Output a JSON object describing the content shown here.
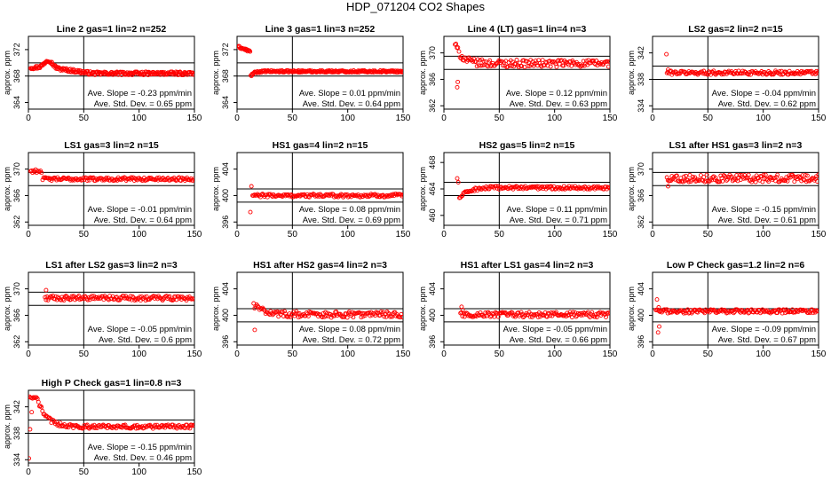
{
  "page": {
    "title": "HDP_071204  CO2 Shapes"
  },
  "style": {
    "point_color": "#ff0000",
    "line_color": "#000000"
  },
  "chart_data": [
    {
      "type": "scatter",
      "title": "Line 2 gas=1 lin=2 n=252",
      "ylabel": "approx. ppm",
      "xlim": [
        0,
        150
      ],
      "ylim": [
        363,
        374
      ],
      "xticks": [
        0,
        50,
        100,
        150
      ],
      "yticks": [
        364,
        368,
        372
      ],
      "hlines": [
        368,
        370
      ],
      "vline": 50,
      "slope_text": "Ave. Slope = -0.23  ppm/min",
      "sd_text": "Ave. Std. Dev. = 0.65  ppm",
      "x_start": 2,
      "x_end": 150,
      "step": 0.6,
      "start_spike": true,
      "base": 369.3,
      "noise": 0.25,
      "shape": "hump",
      "shape_params": {
        "peak_x": 18,
        "amp": 1.1,
        "width": 5,
        "drift": -0.9
      }
    },
    {
      "type": "scatter",
      "title": "Line 3 gas=1 lin=3 n=252",
      "ylabel": "approx. ppm",
      "xlim": [
        0,
        150
      ],
      "ylim": [
        363,
        374
      ],
      "xticks": [
        0,
        50,
        100,
        150
      ],
      "yticks": [
        364,
        368,
        372
      ],
      "hlines": [
        368,
        370
      ],
      "vline": 50,
      "slope_text": "Ave. Slope = 0.01  ppm/min",
      "sd_text": "Ave. Std. Dev. = 0.64  ppm",
      "x_start": 1,
      "x_end": 150,
      "step": 0.6,
      "start_spike": false,
      "base": 368.7,
      "noise": 0.15,
      "shape": "startdrop",
      "shape_params": {
        "start_val": 372.5,
        "drop_x": 12,
        "dip": -0.8
      }
    },
    {
      "type": "scatter",
      "title": "Line 4 (LT) gas=1 lin=4 n=3",
      "ylabel": "approx. ppm",
      "xlim": [
        0,
        150
      ],
      "ylim": [
        361.5,
        372.5
      ],
      "xticks": [
        0,
        50,
        100,
        150
      ],
      "yticks": [
        362,
        366,
        370
      ],
      "hlines": [
        367.5,
        369.5
      ],
      "vline": 50,
      "slope_text": "Ave. Slope = 0.12  ppm/min",
      "sd_text": "Ave. Std. Dev. = 0.63  ppm",
      "x_start": 10,
      "x_end": 150,
      "step": 0.9,
      "start_spike": false,
      "base": 368.4,
      "noise": 0.55,
      "shape": "decay",
      "shape_params": {
        "amp": 3.0,
        "tau": 6,
        "outliers": [
          [
            12,
            364.8
          ],
          [
            12.5,
            365.6
          ]
        ]
      }
    },
    {
      "type": "scatter",
      "title": "LS2 gas=2 lin=2 n=15",
      "ylabel": "approx. ppm",
      "xlim": [
        0,
        150
      ],
      "ylim": [
        333.5,
        344.5
      ],
      "xticks": [
        0,
        50,
        100,
        150
      ],
      "yticks": [
        334,
        338,
        342
      ],
      "hlines": [
        338,
        340
      ],
      "vline": 50,
      "slope_text": "Ave. Slope = -0.04  ppm/min",
      "sd_text": "Ave. Std. Dev. = 0.62  ppm",
      "x_start": 13,
      "x_end": 150,
      "step": 0.9,
      "start_spike": false,
      "base": 339.0,
      "noise": 0.3,
      "shape": "flat",
      "shape_params": {
        "outliers": [
          [
            12.5,
            341.8
          ],
          [
            14,
            339.5
          ]
        ]
      }
    },
    {
      "type": "scatter",
      "title": "LS1 gas=3 lin=2 n=15",
      "ylabel": "approx. ppm",
      "xlim": [
        0,
        150
      ],
      "ylim": [
        361.5,
        372.5
      ],
      "xticks": [
        0,
        50,
        100,
        150
      ],
      "yticks": [
        362,
        366,
        370
      ],
      "hlines": [
        367.5,
        369.5
      ],
      "vline": 50,
      "slope_text": "Ave. Slope = -0.01  ppm/min",
      "sd_text": "Ave. Std. Dev. = 0.64  ppm",
      "x_start": 2,
      "x_end": 150,
      "step": 0.9,
      "start_spike": false,
      "base": 368.5,
      "noise": 0.25,
      "shape": "startplateau",
      "shape_params": {
        "start_val": 369.7,
        "end_x": 12
      }
    },
    {
      "type": "scatter",
      "title": "HS1 gas=4 lin=2 n=15",
      "ylabel": "approx. ppm",
      "xlim": [
        0,
        150
      ],
      "ylim": [
        395.5,
        406.5
      ],
      "xticks": [
        0,
        50,
        100,
        150
      ],
      "yticks": [
        396,
        400,
        404
      ],
      "hlines": [
        399,
        401
      ],
      "vline": 50,
      "slope_text": "Ave. Slope = 0.08  ppm/min",
      "sd_text": "Ave. Std. Dev. = 0.69  ppm",
      "x_start": 14,
      "x_end": 150,
      "step": 0.9,
      "start_spike": false,
      "base": 400.0,
      "noise": 0.25,
      "shape": "flat",
      "shape_params": {
        "outliers": [
          [
            12,
            397.5
          ],
          [
            13,
            401.4
          ]
        ]
      }
    },
    {
      "type": "scatter",
      "title": "HS2 gas=5 lin=2 n=15",
      "ylabel": "approx. ppm",
      "xlim": [
        0,
        150
      ],
      "ylim": [
        458.5,
        469.5
      ],
      "xticks": [
        0,
        50,
        100,
        150
      ],
      "yticks": [
        460,
        464,
        468
      ],
      "hlines": [
        463,
        465
      ],
      "vline": 50,
      "slope_text": "Ave. Slope = 0.11  ppm/min",
      "sd_text": "Ave. Std. Dev. = 0.71  ppm",
      "x_start": 14,
      "x_end": 150,
      "step": 0.9,
      "start_spike": false,
      "base": 464.2,
      "noise": 0.25,
      "shape": "rise",
      "shape_params": {
        "start_val": 462.6,
        "tau": 8,
        "outliers": [
          [
            12,
            465.6
          ],
          [
            13,
            465.0
          ]
        ]
      }
    },
    {
      "type": "scatter",
      "title": "LS1 after HS1 gas=3 lin=2 n=3",
      "ylabel": "approx. ppm",
      "xlim": [
        0,
        150
      ],
      "ylim": [
        361.5,
        372.5
      ],
      "xticks": [
        0,
        50,
        100,
        150
      ],
      "yticks": [
        362,
        366,
        370
      ],
      "hlines": [
        367.5,
        369.5
      ],
      "vline": 50,
      "slope_text": "Ave. Slope = -0.15  ppm/min",
      "sd_text": "Ave. Std. Dev. = 0.61  ppm",
      "x_start": 13,
      "x_end": 150,
      "step": 0.9,
      "start_spike": false,
      "base": 368.6,
      "noise": 0.55,
      "shape": "flat",
      "shape_params": {
        "outliers": [
          [
            14,
            367.4
          ]
        ]
      }
    },
    {
      "type": "scatter",
      "title": "LS1 after LS2 gas=3 lin=2 n=3",
      "ylabel": "approx. ppm",
      "xlim": [
        0,
        150
      ],
      "ylim": [
        361.5,
        372.5
      ],
      "xticks": [
        0,
        50,
        100,
        150
      ],
      "yticks": [
        362,
        366,
        370
      ],
      "hlines": [
        367.5,
        369.5
      ],
      "vline": 50,
      "slope_text": "Ave. Slope = -0.05  ppm/min",
      "sd_text": "Ave. Std. Dev. = 0.6  ppm",
      "x_start": 15,
      "x_end": 150,
      "step": 0.9,
      "start_spike": false,
      "base": 368.6,
      "noise": 0.35,
      "shape": "flat",
      "shape_params": {
        "outliers": [
          [
            16,
            369.8
          ]
        ]
      }
    },
    {
      "type": "scatter",
      "title": "HS1 after HS2 gas=4 lin=2 n=3",
      "ylabel": "approx. ppm",
      "xlim": [
        0,
        150
      ],
      "ylim": [
        395.5,
        406.5
      ],
      "xticks": [
        0,
        50,
        100,
        150
      ],
      "yticks": [
        396,
        400,
        404
      ],
      "hlines": [
        399,
        401
      ],
      "vline": 50,
      "slope_text": "Ave. Slope = 0.08  ppm/min",
      "sd_text": "Ave. Std. Dev. = 0.72  ppm",
      "x_start": 15,
      "x_end": 150,
      "step": 0.9,
      "start_spike": false,
      "base": 400.1,
      "noise": 0.45,
      "shape": "decay",
      "shape_params": {
        "amp": 1.5,
        "tau": 10,
        "outliers": [
          [
            16,
            397.8
          ]
        ]
      }
    },
    {
      "type": "scatter",
      "title": "HS1 after LS1 gas=4 lin=2 n=3",
      "ylabel": "approx. ppm",
      "xlim": [
        0,
        150
      ],
      "ylim": [
        395.5,
        406.5
      ],
      "xticks": [
        0,
        50,
        100,
        150
      ],
      "yticks": [
        396,
        400,
        404
      ],
      "hlines": [
        399,
        401
      ],
      "vline": 50,
      "slope_text": "Ave. Slope = -0.05  ppm/min",
      "sd_text": "Ave. Std. Dev. = 0.66  ppm",
      "x_start": 15,
      "x_end": 150,
      "step": 0.9,
      "start_spike": false,
      "base": 400.1,
      "noise": 0.4,
      "shape": "flat",
      "shape_params": {
        "outliers": [
          [
            16,
            401.3
          ],
          [
            17,
            400.8
          ]
        ]
      }
    },
    {
      "type": "scatter",
      "title": "Low P Check gas=1.2 lin=2 n=6",
      "ylabel": "approx. ppm",
      "xlim": [
        0,
        150
      ],
      "ylim": [
        395.5,
        406.5
      ],
      "xticks": [
        0,
        50,
        100,
        150
      ],
      "yticks": [
        396,
        400,
        404
      ],
      "hlines": [
        399,
        401
      ],
      "vline": 50,
      "slope_text": "Ave. Slope = -0.09  ppm/min",
      "sd_text": "Ave. Std. Dev. = 0.67  ppm",
      "x_start": 3,
      "x_end": 150,
      "step": 0.9,
      "start_spike": false,
      "base": 400.6,
      "noise": 0.3,
      "shape": "flat",
      "shape_params": {
        "outliers": [
          [
            4,
            402.4
          ],
          [
            5,
            397.4
          ],
          [
            6,
            398.3
          ],
          [
            5.5,
            401.2
          ]
        ]
      }
    },
    {
      "type": "scatter",
      "title": "High P Check gas=1 lin=0.8 n=3",
      "ylabel": "approx. ppm",
      "xlim": [
        0,
        150
      ],
      "ylim": [
        333.5,
        344.5
      ],
      "xticks": [
        0,
        50,
        100,
        150
      ],
      "yticks": [
        334,
        338,
        342
      ],
      "hlines": [
        338,
        340
      ],
      "vline": 50,
      "slope_text": "Ave. Slope = -0.15  ppm/min",
      "sd_text": "Ave. Std. Dev. = 0.46  ppm",
      "x_start": 1,
      "x_end": 150,
      "step": 0.9,
      "start_spike": false,
      "base": 339.0,
      "noise": 0.3,
      "shape": "earlypeak",
      "shape_params": {
        "peak_val": 343.3,
        "peak_x": 8,
        "tau": 8,
        "outliers": [
          [
            0.5,
            334.2
          ],
          [
            1.5,
            338.6
          ],
          [
            3,
            341.2
          ]
        ]
      }
    }
  ]
}
